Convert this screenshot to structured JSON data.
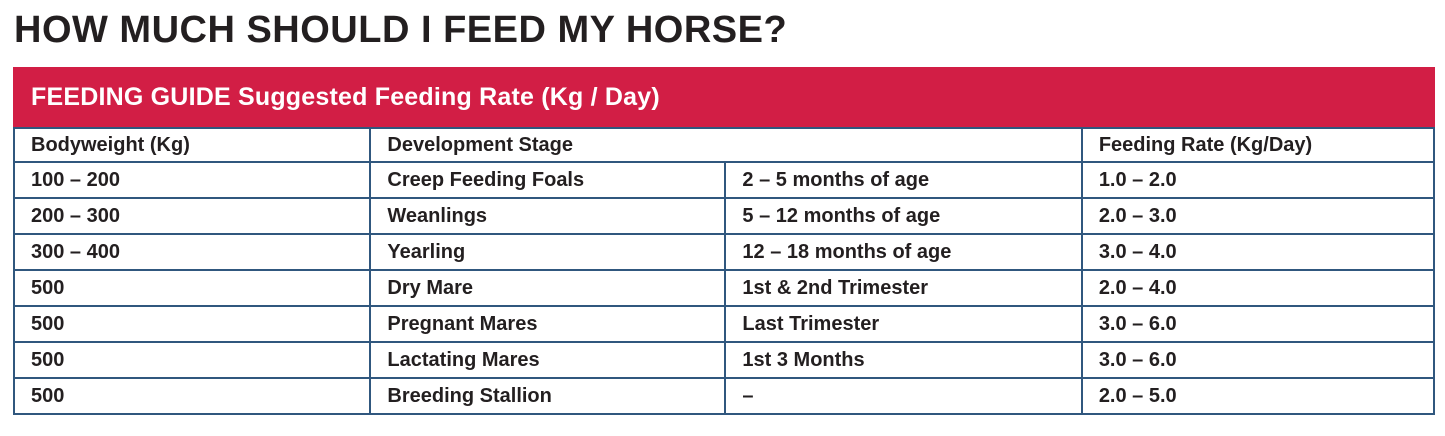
{
  "page": {
    "title": "HOW MUCH SHOULD I FEED MY HORSE?"
  },
  "colors": {
    "banner_red": "#D21E45",
    "border_blue": "#30577E",
    "text_dark": "#231F20",
    "banner_text": "#FFFFFF"
  },
  "table": {
    "banner": "FEEDING GUIDE Suggested Feeding Rate (Kg / Day)",
    "columns": [
      "Bodyweight (Kg)",
      "Development Stage",
      "Feeding Rate (Kg/Day)"
    ],
    "rows": [
      [
        "100 – 200",
        "Creep Feeding Foals",
        "2 – 5 months of age",
        "1.0 – 2.0"
      ],
      [
        "200 – 300",
        "Weanlings",
        "5 – 12 months of age",
        "2.0 – 3.0"
      ],
      [
        "300 – 400",
        "Yearling",
        "12 – 18 months of age",
        "3.0 – 4.0"
      ],
      [
        "500",
        "Dry Mare",
        "1st & 2nd Trimester",
        "2.0 – 4.0"
      ],
      [
        "500",
        "Pregnant Mares",
        "Last Trimester",
        "3.0 – 6.0"
      ],
      [
        "500",
        "Lactating Mares",
        "1st 3 Months",
        "3.0 – 6.0"
      ],
      [
        "500",
        "Breeding Stallion",
        "–",
        "2.0 – 5.0"
      ]
    ]
  }
}
